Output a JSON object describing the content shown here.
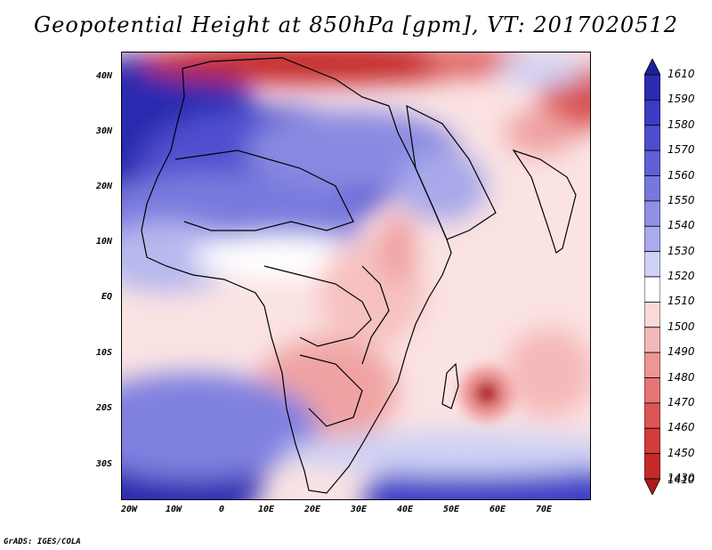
{
  "title": "Geopotential Height at 850hPa [gpm], VT: 2017020512",
  "footer": "GrADS: IGES/COLA",
  "lat_labels": [
    "40N",
    "30N",
    "20N",
    "10N",
    "EQ",
    "10S",
    "20S",
    "30S"
  ],
  "lon_labels": [
    "20W",
    "10W",
    "0",
    "10E",
    "20E",
    "30E",
    "40E",
    "50E",
    "60E",
    "70E"
  ],
  "colorbar": {
    "levels": [
      "1610",
      "1590",
      "1580",
      "1570",
      "1560",
      "1550",
      "1540",
      "1530",
      "1520",
      "1510",
      "1500",
      "1490",
      "1480",
      "1470",
      "1460",
      "1450",
      "1430",
      "1410"
    ],
    "colors": [
      "#1f1f9a",
      "#2b2bb0",
      "#3b3bc4",
      "#4d4dcf",
      "#6060d6",
      "#7777dd",
      "#9090e4",
      "#aaaaec",
      "#cfd2f5",
      "#ffffff",
      "#fbd9d9",
      "#f5b8b8",
      "#ee9595",
      "#e67575",
      "#dc5555",
      "#d23c3c",
      "#c42a2a",
      "#b01c1c"
    ]
  }
}
